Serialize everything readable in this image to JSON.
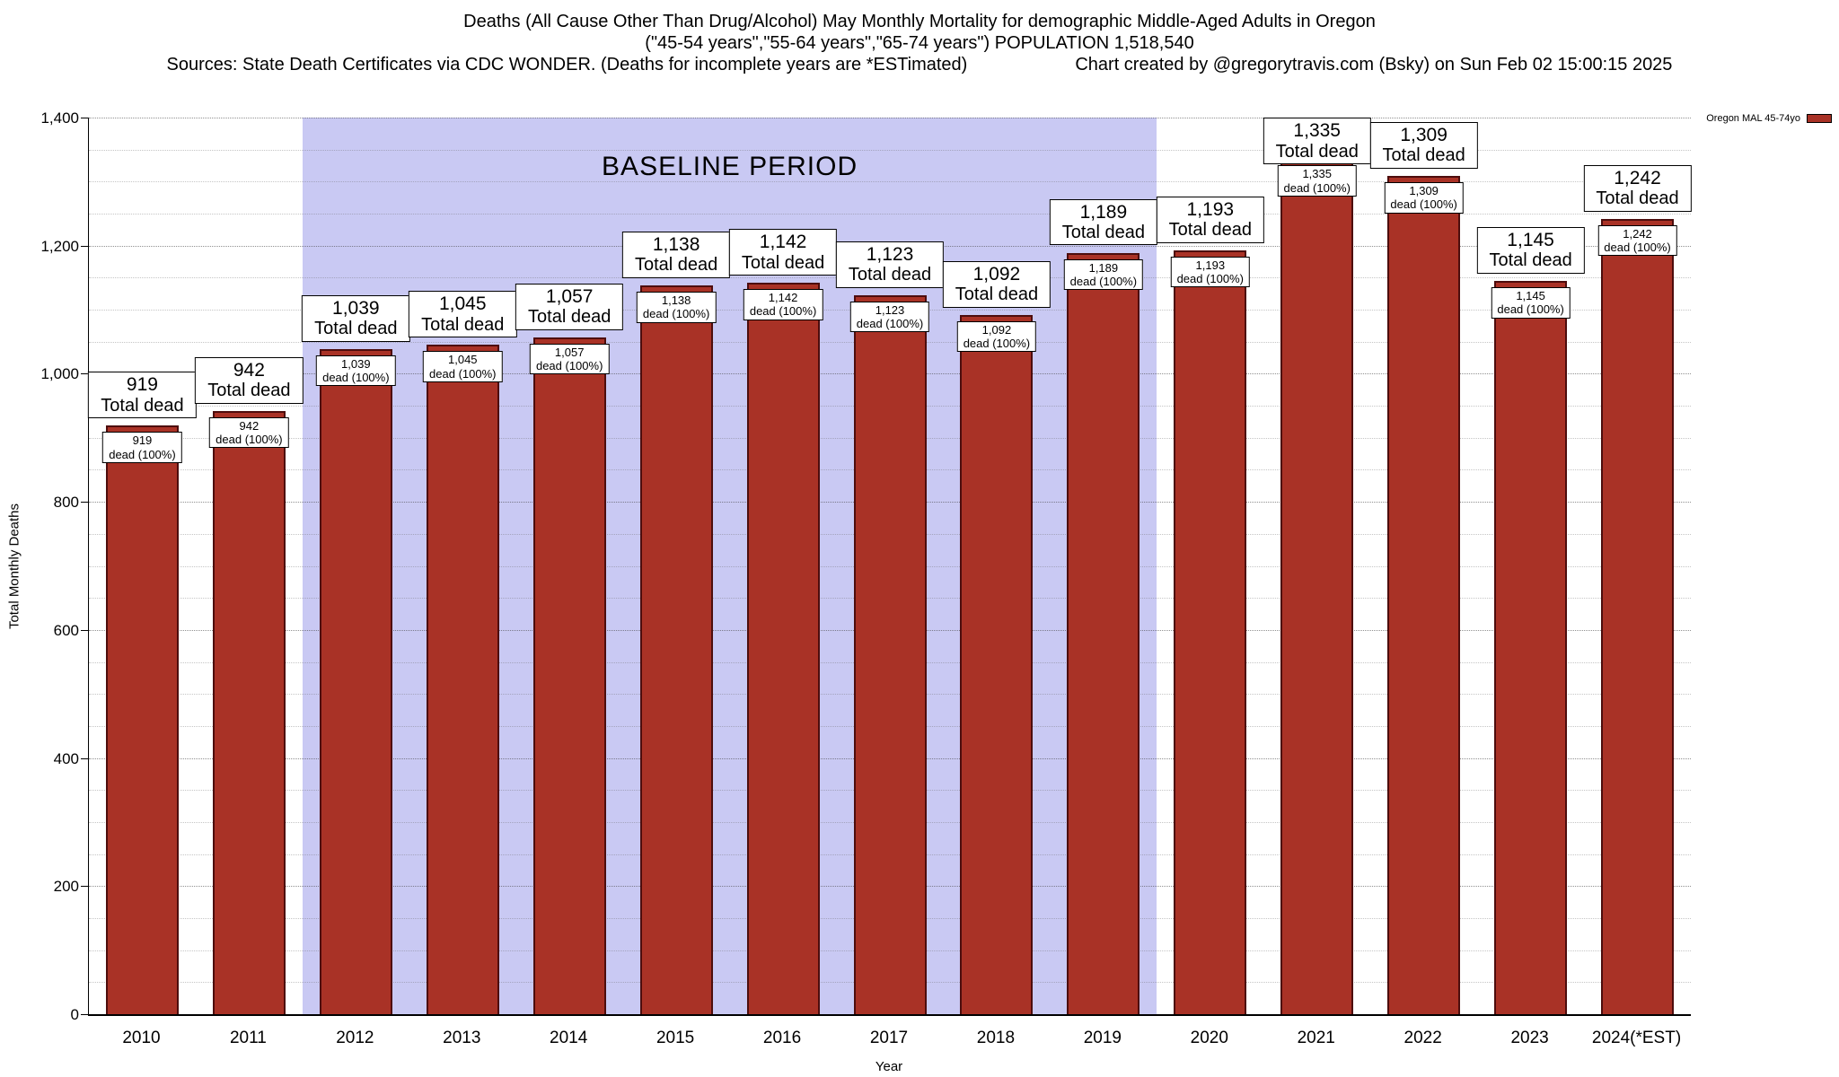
{
  "header": {
    "title_line1": "Deaths (All Cause Other Than Drug/Alcohol) May Monthly Mortality for demographic Middle-Aged Adults in Oregon",
    "title_line2": "(\"45-54 years\",\"55-64 years\",\"65-74 years\") POPULATION 1,518,540",
    "title_line3_left": "Sources: State Death Certificates via CDC WONDER. (Deaths for incomplete years are *ESTimated)",
    "title_line3_right": "Chart created by @gregorytravis.com (Bsky) on Sun Feb 02 15:00:15 2025"
  },
  "legend": {
    "label": "Oregon MAL 45-74yo",
    "swatch_color": "#a93226"
  },
  "chart_data": {
    "type": "bar",
    "title": "Deaths (All Cause Other Than Drug/Alcohol) May Monthly Mortality for demographic Middle-Aged Adults in Oregon",
    "subtitle": "(\"45-54 years\",\"55-64 years\",\"65-74 years\") POPULATION 1,518,540",
    "categories": [
      "2010",
      "2011",
      "2012",
      "2013",
      "2014",
      "2015",
      "2016",
      "2017",
      "2018",
      "2019",
      "2020",
      "2021",
      "2022",
      "2023",
      "2024(*EST)"
    ],
    "series": [
      {
        "name": "Oregon MAL 45-74yo",
        "values": [
          919,
          942,
          1039,
          1045,
          1057,
          1138,
          1142,
          1123,
          1092,
          1189,
          1193,
          1335,
          1309,
          1145,
          1242
        ]
      }
    ],
    "xlabel": "Year",
    "ylabel": "Total Monthly Deaths",
    "ylim": [
      0,
      1400
    ],
    "ytick_step": 200,
    "minor_grid_step": 50,
    "grid": true,
    "legend_position": "top-right",
    "bar_color": "#a93226",
    "bar_border_color": "#4d0d0d",
    "annotations": {
      "baseline_label": "BASELINE PERIOD",
      "baseline_start_category": "2012",
      "baseline_end_category": "2019",
      "baseline_band_color": "#c9c9f3"
    },
    "bar_labels": {
      "outer_line2": "Total dead",
      "inner_line2": "dead (100%)"
    }
  }
}
